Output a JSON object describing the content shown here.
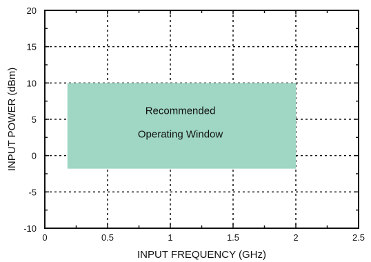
{
  "chart_data": {
    "type": "area",
    "title": "",
    "xlabel": "INPUT FREQUENCY (GHz)",
    "ylabel": "INPUT POWER (dBm)",
    "xlim": [
      0,
      2.5
    ],
    "ylim": [
      -10,
      20
    ],
    "x_ticks": [
      0,
      0.5,
      1,
      1.5,
      2,
      2.5
    ],
    "x_tick_labels": [
      "0",
      "0.5",
      "1",
      "1.5",
      "2",
      "2.5"
    ],
    "y_ticks": [
      -10,
      -5,
      0,
      5,
      10,
      15,
      20
    ],
    "y_tick_labels": [
      "-10",
      "-5",
      "0",
      "5",
      "10",
      "15",
      "20"
    ],
    "grid": true,
    "region": {
      "label_lines": [
        "Recommended",
        "Operating Window"
      ],
      "x_range": [
        0.18,
        2.0
      ],
      "y_range": [
        -1.8,
        10
      ],
      "color": "#9fd6c4"
    }
  }
}
